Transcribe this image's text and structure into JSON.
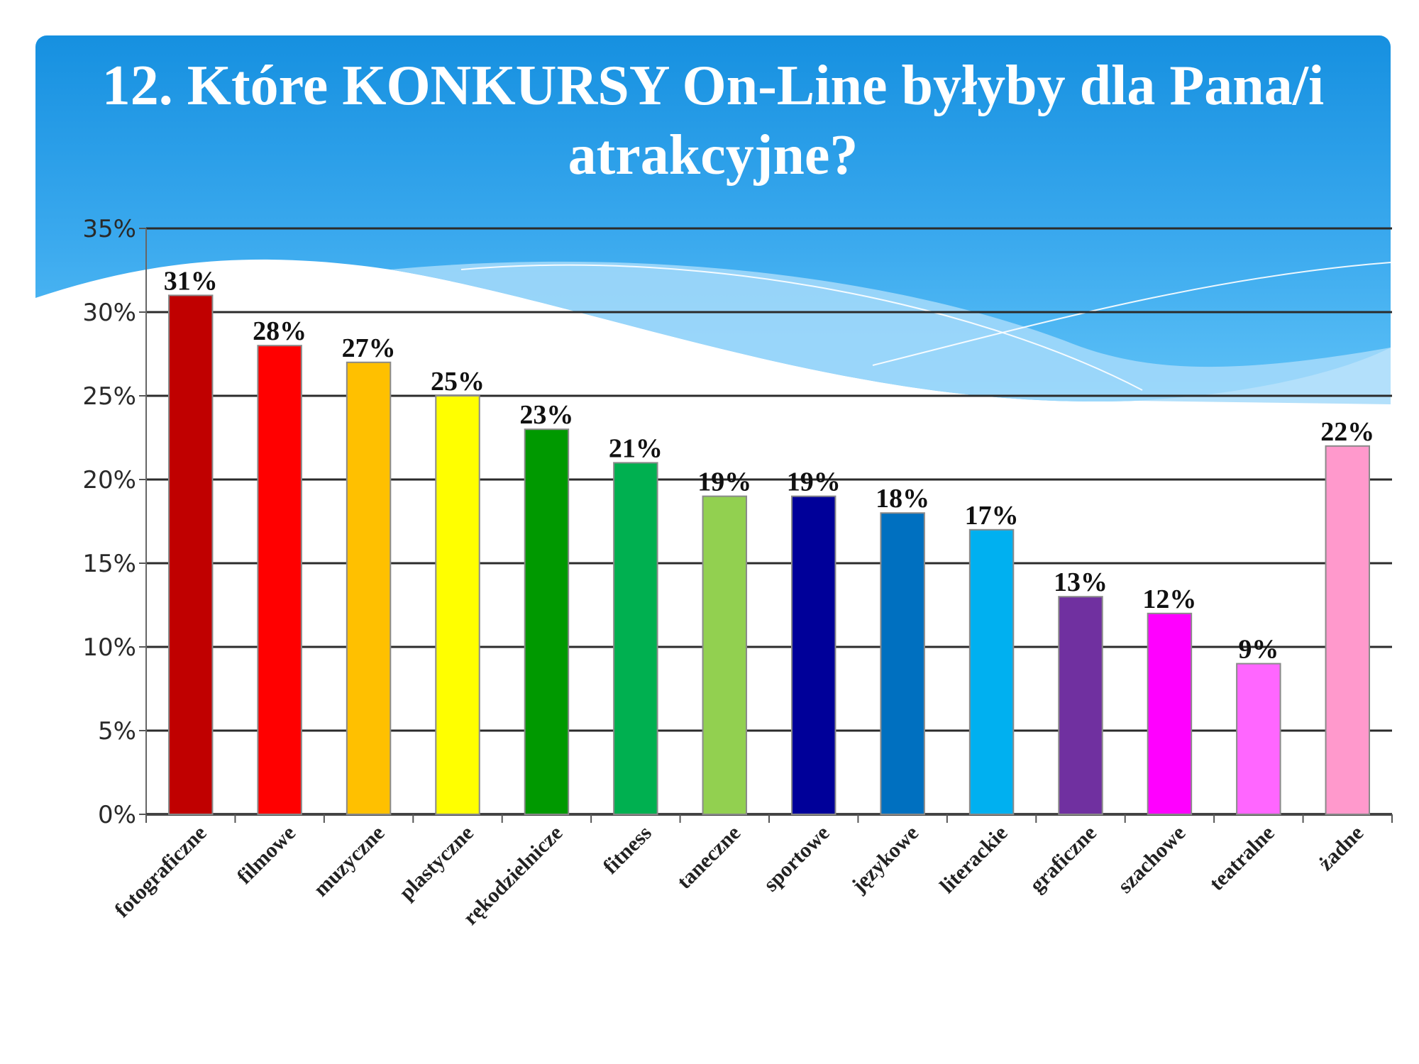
{
  "slide": {
    "title": "12. Które KONKURSY On-Line byłyby dla Pana/i atrakcyjne?"
  },
  "colors": {
    "header_top": "#1a8fe0",
    "header_bottom": "#5cc0f6",
    "wave_light": "#9fd8fa",
    "grid": "#333333"
  },
  "chart_data": {
    "type": "bar",
    "title": "",
    "xlabel": "",
    "ylabel": "",
    "ylim": [
      0,
      35
    ],
    "ytick_step": 5,
    "ytick_labels": [
      "0%",
      "5%",
      "10%",
      "15%",
      "20%",
      "25%",
      "30%",
      "35%"
    ],
    "grid": true,
    "legend": "none",
    "categories": [
      "fotograficzne",
      "filmowe",
      "muzyczne",
      "plastyczne",
      "rękodzielnicze",
      "fitness",
      "taneczne",
      "sportowe",
      "językowe",
      "literackie",
      "graficzne",
      "szachowe",
      "teatralne",
      "żadne"
    ],
    "values": [
      31,
      28,
      27,
      25,
      23,
      21,
      19,
      19,
      18,
      17,
      13,
      12,
      9,
      22
    ],
    "value_labels": [
      "31%",
      "28%",
      "27%",
      "25%",
      "23%",
      "21%",
      "19%",
      "19%",
      "18%",
      "17%",
      "13%",
      "12%",
      "9%",
      "22%"
    ],
    "bar_colors": [
      "#c00000",
      "#ff0000",
      "#ffc000",
      "#ffff00",
      "#009900",
      "#00b050",
      "#92d050",
      "#000099",
      "#0070c0",
      "#00b0f0",
      "#7030a0",
      "#ff00ff",
      "#ff66ff",
      "#ff99cc"
    ]
  }
}
